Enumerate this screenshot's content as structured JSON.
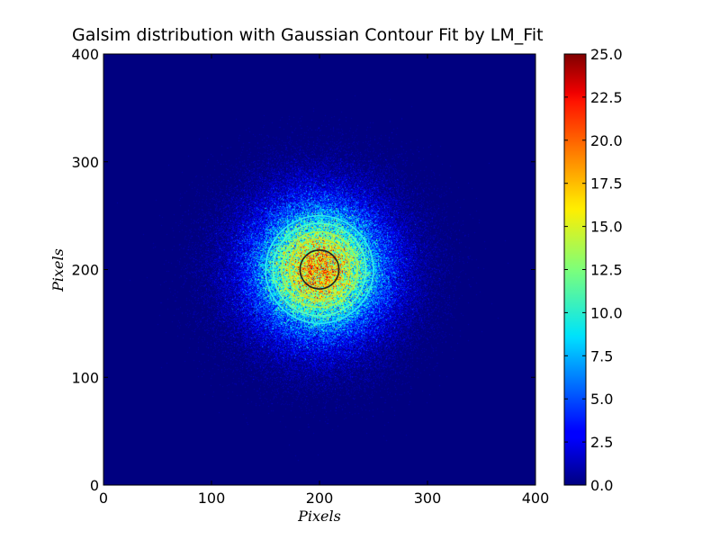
{
  "chart_data": {
    "type": "heatmap",
    "title": "Galsim distribution with Gaussian Contour Fit by LM_Fit",
    "xlabel": "Pixels",
    "ylabel": "Pixels",
    "xlim": [
      0,
      400
    ],
    "ylim": [
      0,
      400
    ],
    "xticks": [
      "0",
      "100",
      "200",
      "300",
      "400"
    ],
    "yticks": [
      "0",
      "100",
      "200",
      "300",
      "400"
    ],
    "colormap": "jet",
    "colorbar": {
      "range": [
        0.0,
        25.0
      ],
      "ticks": [
        "0.0",
        "2.5",
        "5.0",
        "7.5",
        "10.0",
        "12.5",
        "15.0",
        "17.5",
        "20.0",
        "22.5",
        "25.0"
      ]
    },
    "distribution": {
      "center_x": 200,
      "center_y": 200,
      "sigma": 38,
      "peak_value": 18,
      "noise": "poisson"
    },
    "contours": [
      {
        "center_x": 200,
        "center_y": 200,
        "radius": 18,
        "color": "#222222"
      },
      {
        "center_x": 200,
        "center_y": 200,
        "radius": 28,
        "color": "#c8e62a"
      },
      {
        "center_x": 200,
        "center_y": 200,
        "radius": 35,
        "color": "#9cf55a"
      },
      {
        "center_x": 200,
        "center_y": 200,
        "radius": 43,
        "color": "#4dfad2"
      },
      {
        "center_x": 200,
        "center_y": 200,
        "radius": 50,
        "color": "#2ee8f0"
      }
    ],
    "grid": false
  }
}
